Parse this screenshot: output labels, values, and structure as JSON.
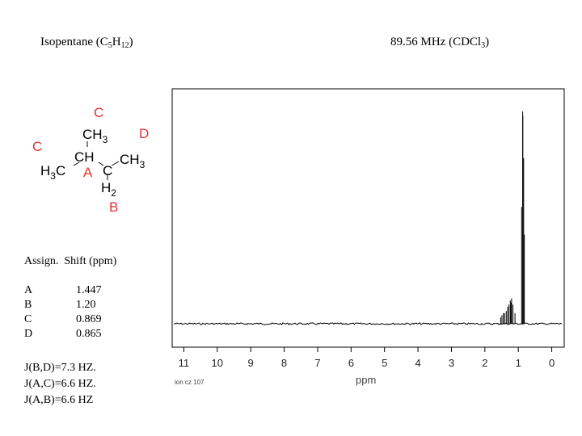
{
  "header": {
    "compound_name": "Isopentane (C",
    "compound_c_sub": "5",
    "compound_h": "H",
    "compound_h_sub": "12",
    "compound_close": ")",
    "instrument": "89.56 MHz (CDCl",
    "instrument_sub": "3",
    "instrument_close": ")"
  },
  "molecule": {
    "atoms": {
      "top_ch3": "CH",
      "top_ch3_sub": "3",
      "left_ch3": "H",
      "left_ch3_sub": "3",
      "left_ch3_c": "C",
      "ch": "CH",
      "right_c": "C",
      "right_ch3": "CH",
      "right_ch3_sub": "3",
      "ch2_h": "H",
      "ch2_sub": "2"
    },
    "labels": {
      "top": "C",
      "left": "C",
      "center": "A",
      "right": "D",
      "bottom": "B"
    },
    "label_color": "#e53333"
  },
  "assignments": {
    "header": "Assign.  Shift (ppm)",
    "rows": [
      {
        "label": "A",
        "shift": "1.447"
      },
      {
        "label": "B",
        "shift": "1.20"
      },
      {
        "label": "C",
        "shift": "0.869"
      },
      {
        "label": "D",
        "shift": "0.865"
      }
    ]
  },
  "couplings": [
    "J(B,D)=7.3 HZ.",
    "J(A,C)=6.6 HZ.",
    "J(A,B)=6.6 HZ"
  ],
  "chart_data": {
    "type": "line",
    "xlabel": "ppm",
    "footnote": "ion cz 107",
    "x_ticks": [
      "11",
      "10",
      "9",
      "8",
      "7",
      "6",
      "5",
      "4",
      "3",
      "2",
      "1",
      "0"
    ],
    "xlim": [
      11.3,
      -0.3
    ],
    "x_reversed": true,
    "grid": false,
    "series": [
      {
        "peaks": [
          {
            "ppm": 0.869,
            "intensity": 1.0
          },
          {
            "ppm": 0.865,
            "intensity": 0.98
          },
          {
            "ppm": 0.84,
            "intensity": 0.78
          },
          {
            "ppm": 0.9,
            "intensity": 0.55
          },
          {
            "ppm": 0.82,
            "intensity": 0.42
          },
          {
            "ppm": 1.2,
            "intensity": 0.12
          },
          {
            "ppm": 1.22,
            "intensity": 0.1
          },
          {
            "ppm": 1.24,
            "intensity": 0.11
          },
          {
            "ppm": 1.16,
            "intensity": 0.09
          },
          {
            "ppm": 1.28,
            "intensity": 0.09
          },
          {
            "ppm": 1.32,
            "intensity": 0.08
          },
          {
            "ppm": 1.36,
            "intensity": 0.06
          },
          {
            "ppm": 1.41,
            "intensity": 0.05
          },
          {
            "ppm": 1.447,
            "intensity": 0.05
          },
          {
            "ppm": 1.49,
            "intensity": 0.04
          },
          {
            "ppm": 1.53,
            "intensity": 0.03
          },
          {
            "ppm": 1.1,
            "intensity": 0.05
          }
        ]
      }
    ]
  }
}
